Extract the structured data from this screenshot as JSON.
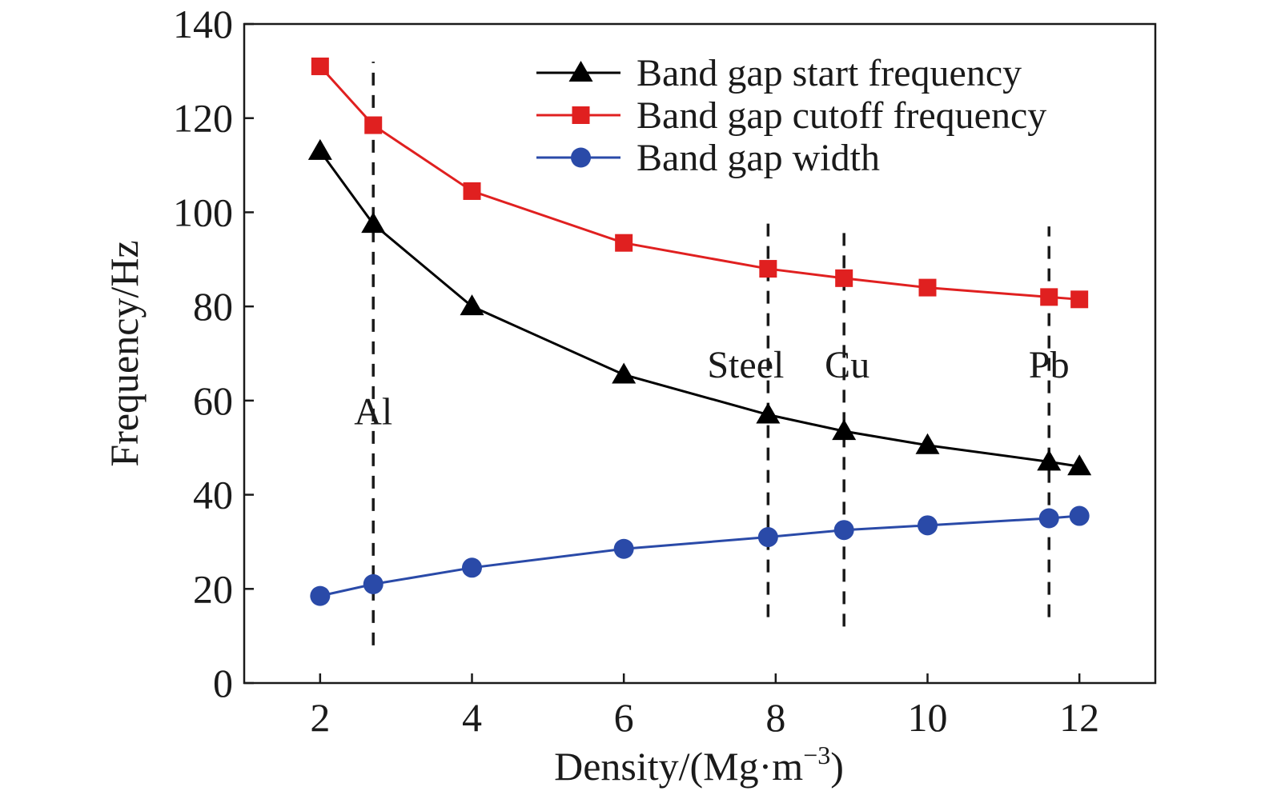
{
  "chart_data": {
    "type": "line",
    "xlabel": "Density/(Mg·m",
    "xlabel_sup": "−3",
    "xlabel_tail": ")",
    "ylabel": "Frequency/Hz",
    "xlim": [
      1,
      13
    ],
    "ylim": [
      0,
      140
    ],
    "xticks": [
      2,
      4,
      6,
      8,
      10,
      12
    ],
    "yticks": [
      0,
      20,
      40,
      60,
      80,
      100,
      120,
      140
    ],
    "grid": false,
    "legend_position": "top-right",
    "x": [
      2,
      2.7,
      4,
      6,
      7.9,
      8.9,
      10,
      11.6,
      12
    ],
    "series": [
      {
        "name": "Band gap start frequency",
        "marker": "triangle",
        "color": "#000000",
        "values": [
          113,
          97.5,
          80,
          65.5,
          57,
          53.5,
          50.5,
          47,
          46
        ]
      },
      {
        "name": "Band gap cutoff frequency",
        "marker": "square",
        "color": "#e02020",
        "values": [
          131,
          118.5,
          104.5,
          93.5,
          88,
          86,
          84,
          82,
          81.5
        ]
      },
      {
        "name": "Band gap width",
        "marker": "circle",
        "color": "#2a4aa8",
        "values": [
          18.5,
          21,
          24.5,
          28.5,
          31,
          32.5,
          33.5,
          35,
          35.5
        ]
      }
    ],
    "reference_lines": [
      {
        "label": "Al",
        "x": 2.7,
        "y_from": 8,
        "y_to": 132,
        "label_y": 58
      },
      {
        "label": "Steel",
        "x": 7.9,
        "y_from": 14,
        "y_to": 98,
        "label_y": 68
      },
      {
        "label": "Cu",
        "x": 8.9,
        "y_from": 12,
        "y_to": 96,
        "label_y": 68
      },
      {
        "label": "Pb",
        "x": 11.6,
        "y_from": 14,
        "y_to": 97,
        "label_y": 68
      }
    ]
  }
}
